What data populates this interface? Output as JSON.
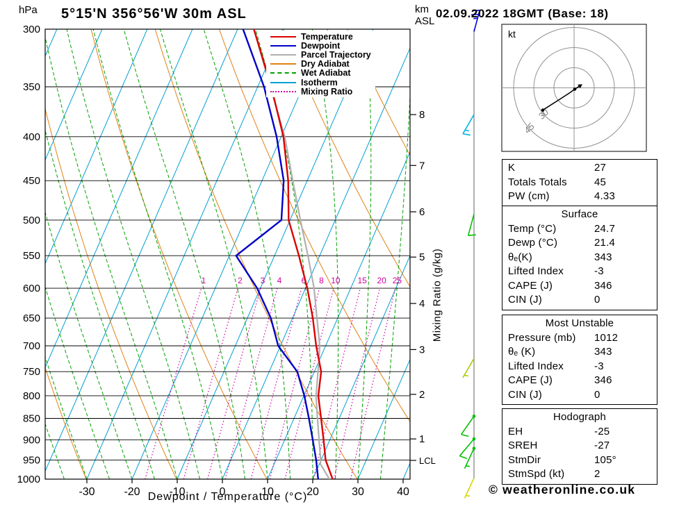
{
  "header": {
    "title": "5°15'N 356°56'W 30m ASL",
    "datetime": "02.09.2022 18GMT (Base: 18)",
    "pressure_unit": "hPa",
    "altitude_unit_km": "km",
    "altitude_unit_asl": "ASL"
  },
  "axes": {
    "x_label": "Dewpoint / Temperature (°C)",
    "y_right_label": "Mixing Ratio (g/kg)"
  },
  "colors": {
    "temperature": "#dc0000",
    "dewpoint": "#0000c8",
    "parcel": "#b0b0b0",
    "dry_adiabat": "#e08214",
    "wet_adiabat": "#00a000",
    "isotherm": "#00a0d2",
    "mixing_ratio": "#d200a0",
    "grid": "#000000"
  },
  "legend": [
    {
      "label": "Temperature",
      "color": "#dc0000",
      "style": "solid"
    },
    {
      "label": "Dewpoint",
      "color": "#0000c8",
      "style": "solid"
    },
    {
      "label": "Parcel Trajectory",
      "color": "#b0b0b0",
      "style": "solid"
    },
    {
      "label": "Dry Adiabat",
      "color": "#e08214",
      "style": "solid"
    },
    {
      "label": "Wet Adiabat",
      "color": "#00a000",
      "style": "dashed"
    },
    {
      "label": "Isotherm",
      "color": "#00a0d2",
      "style": "solid"
    },
    {
      "label": "Mixing Ratio",
      "color": "#d200a0",
      "style": "dotted"
    }
  ],
  "chart_data": {
    "type": "skewt-log-p",
    "pressure_axis_hpa": [
      300,
      350,
      400,
      450,
      500,
      550,
      600,
      650,
      700,
      750,
      800,
      850,
      900,
      950,
      1000
    ],
    "temp_axis_c": [
      -30,
      -20,
      -10,
      0,
      10,
      20,
      30,
      40
    ],
    "isotherm_step_c": 10,
    "dry_adiabat_theta_k": [
      243,
      263,
      283,
      303,
      323,
      343,
      363,
      383,
      403,
      423
    ],
    "wet_adiabat_thetaw_c": [
      -40,
      -35,
      -30,
      -25,
      -20,
      -15,
      -10,
      -5,
      0,
      5,
      10,
      15,
      20,
      25,
      30,
      35
    ],
    "mixing_ratio_g_kg": [
      1,
      2,
      3,
      4,
      6,
      8,
      10,
      15,
      20,
      25
    ],
    "km_ticks": [
      {
        "label": "8",
        "p": 377
      },
      {
        "label": "7",
        "p": 432
      },
      {
        "label": "6",
        "p": 489
      },
      {
        "label": "5",
        "p": 552
      },
      {
        "label": "4",
        "p": 625
      },
      {
        "label": "3",
        "p": 707
      },
      {
        "label": "2",
        "p": 797
      },
      {
        "label": "1",
        "p": 898
      },
      {
        "label": "LCL",
        "p": 951
      }
    ],
    "temperature_profile": [
      [
        1012,
        24.7
      ],
      [
        1000,
        24.4
      ],
      [
        950,
        21.0
      ],
      [
        900,
        18.6
      ],
      [
        850,
        16.0
      ],
      [
        800,
        13.2
      ],
      [
        750,
        11.5
      ],
      [
        700,
        7.9
      ],
      [
        650,
        4.5
      ],
      [
        600,
        0.4
      ],
      [
        550,
        -4.6
      ],
      [
        500,
        -10.3
      ],
      [
        450,
        -14.2
      ],
      [
        400,
        -19.5
      ],
      [
        350,
        -27.0
      ],
      [
        300,
        -36.4
      ]
    ],
    "dewpoint_profile": [
      [
        1012,
        21.4
      ],
      [
        1000,
        21.2
      ],
      [
        950,
        18.9
      ],
      [
        900,
        16.2
      ],
      [
        850,
        13.3
      ],
      [
        800,
        10.1
      ],
      [
        750,
        6.2
      ],
      [
        700,
        -0.5
      ],
      [
        650,
        -4.8
      ],
      [
        600,
        -10.7
      ],
      [
        550,
        -18.5
      ],
      [
        500,
        -11.9
      ],
      [
        450,
        -15.2
      ],
      [
        400,
        -21.0
      ],
      [
        350,
        -28.6
      ],
      [
        300,
        -38.8
      ]
    ],
    "parcel_profile": [
      [
        1012,
        24.7
      ],
      [
        960,
        20.2
      ],
      [
        950,
        19.9
      ],
      [
        900,
        17.6
      ],
      [
        850,
        15.2
      ],
      [
        800,
        12.7
      ],
      [
        750,
        10.8
      ],
      [
        700,
        8.7
      ],
      [
        650,
        5.4
      ],
      [
        600,
        1.9
      ],
      [
        550,
        -2.6
      ],
      [
        500,
        -7.7
      ],
      [
        450,
        -13.2
      ],
      [
        400,
        -19.2
      ],
      [
        350,
        -27.2
      ],
      [
        300,
        -36.4
      ]
    ],
    "wind_barbs": [
      {
        "p": 302,
        "color": "#0000dc",
        "angle": 75,
        "full": 2,
        "half": 1,
        "dot": false
      },
      {
        "p": 377,
        "color": "#00b4e6",
        "angle": 240,
        "full": 1,
        "half": 1,
        "dot": false
      },
      {
        "p": 492,
        "color": "#00c000",
        "angle": 255,
        "full": 1,
        "half": 0,
        "dot": false
      },
      {
        "p": 724,
        "color": "#a8cc00",
        "angle": 240,
        "full": 0,
        "half": 1,
        "dot": false
      },
      {
        "p": 845,
        "color": "#00c000",
        "angle": 235,
        "full": 1,
        "half": 0,
        "dot": true
      },
      {
        "p": 898,
        "color": "#00c000",
        "angle": 230,
        "full": 1,
        "half": 0,
        "dot": true
      },
      {
        "p": 921,
        "color": "#00c000",
        "angle": 245,
        "full": 0,
        "half": 1,
        "dot": true
      },
      {
        "p": 997,
        "color": "#d8d800",
        "angle": 245,
        "full": 0,
        "half": 1,
        "dot": false
      }
    ]
  },
  "hodograph": {
    "unit_label": "kt",
    "rings_kt": [
      15,
      30,
      45
    ],
    "ring_labels": [
      {
        "value": "30",
        "ring_kt": 30
      },
      {
        "value": "45",
        "ring_kt": 45
      }
    ],
    "trace_kt": [
      [
        -23.3,
        -16.6
      ],
      [
        -10.3,
        -8.3
      ],
      [
        -3.1,
        -3.6
      ],
      [
        0.5,
        -1.0
      ],
      [
        3.6,
        1.0
      ]
    ]
  },
  "stats": {
    "boxes": [
      {
        "title": null,
        "rows": [
          [
            "K",
            "27"
          ],
          [
            "Totals Totals",
            "45"
          ],
          [
            "PW (cm)",
            "4.33"
          ]
        ]
      },
      {
        "title": "Surface",
        "rows": [
          [
            "Temp (°C)",
            "24.7"
          ],
          [
            "Dewp (°C)",
            "21.4"
          ],
          [
            "θₑ(K)",
            "343"
          ],
          [
            "Lifted Index",
            "-3"
          ],
          [
            "CAPE (J)",
            "346"
          ],
          [
            "CIN (J)",
            "0"
          ]
        ]
      },
      {
        "title": "Most Unstable",
        "rows": [
          [
            "Pressure (mb)",
            "1012"
          ],
          [
            "θₑ (K)",
            "343"
          ],
          [
            "Lifted Index",
            "-3"
          ],
          [
            "CAPE (J)",
            "346"
          ],
          [
            "CIN (J)",
            "0"
          ]
        ]
      },
      {
        "title": "Hodograph",
        "rows": [
          [
            "EH",
            "-25"
          ],
          [
            "SREH",
            "-27"
          ],
          [
            "StmDir",
            "105°"
          ],
          [
            "StmSpd (kt)",
            "2"
          ]
        ]
      }
    ]
  },
  "footer": {
    "copyright": "© weatheronline.co.uk"
  }
}
